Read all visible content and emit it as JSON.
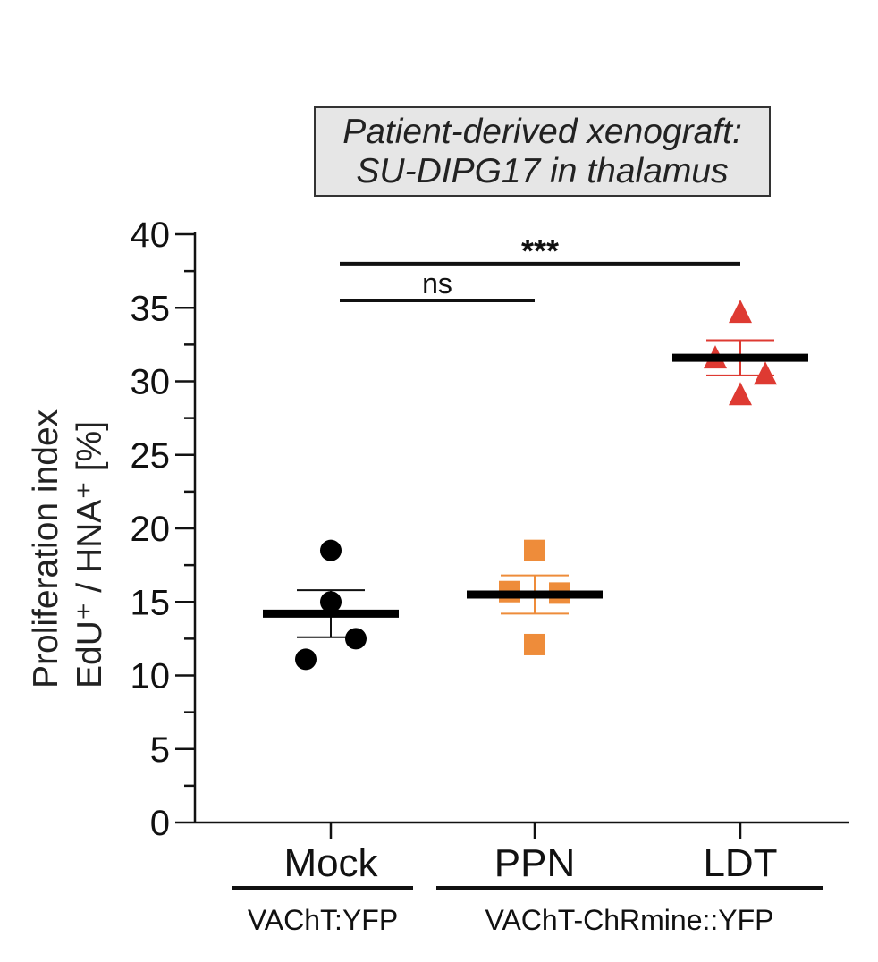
{
  "chart_data": {
    "type": "scatter",
    "title_lines": [
      "Patient-derived xenograft:",
      "SU-DIPG17 in thalamus"
    ],
    "ylabel_lines": [
      "Proliferation index",
      "EdU⁺ / HNA⁺ [%]"
    ],
    "ylim": [
      0,
      40
    ],
    "yticks": [
      0,
      5,
      10,
      15,
      20,
      25,
      30,
      35,
      40
    ],
    "categories": [
      "Mock",
      "PPN",
      "LDT"
    ],
    "groups": [
      {
        "label": "VAChT:YFP",
        "categories": [
          "Mock"
        ]
      },
      {
        "label": "VAChT-ChRmine::YFP",
        "categories": [
          "PPN",
          "LDT"
        ]
      }
    ],
    "series": [
      {
        "category": "Mock",
        "marker": "circle",
        "color": "#000000",
        "points": [
          {
            "dx": 0,
            "y": 18.5
          },
          {
            "dx": 0,
            "y": 15.0
          },
          {
            "dx": 0.25,
            "y": 12.5
          },
          {
            "dx": -0.25,
            "y": 11.1
          }
        ],
        "mean": 14.2,
        "sem_low": 12.6,
        "sem_high": 15.8
      },
      {
        "category": "PPN",
        "marker": "square",
        "color": "#ee8c3a",
        "points": [
          {
            "dx": 0,
            "y": 18.5
          },
          {
            "dx": -0.25,
            "y": 15.7
          },
          {
            "dx": 0.25,
            "y": 15.6
          },
          {
            "dx": 0,
            "y": 12.1
          }
        ],
        "mean": 15.5,
        "sem_low": 14.2,
        "sem_high": 16.8
      },
      {
        "category": "LDT",
        "marker": "triangle",
        "color": "#de3a32",
        "points": [
          {
            "dx": 0,
            "y": 34.7
          },
          {
            "dx": -0.25,
            "y": 31.6
          },
          {
            "dx": 0.25,
            "y": 30.5
          },
          {
            "dx": 0,
            "y": 29.1
          }
        ],
        "mean": 31.6,
        "sem_low": 30.4,
        "sem_high": 32.8
      }
    ],
    "comparisons": [
      {
        "from": "Mock",
        "to": "LDT",
        "y": 38.0,
        "label": "***"
      },
      {
        "from": "Mock",
        "to": "PPN",
        "y": 35.5,
        "label": "ns"
      }
    ]
  }
}
